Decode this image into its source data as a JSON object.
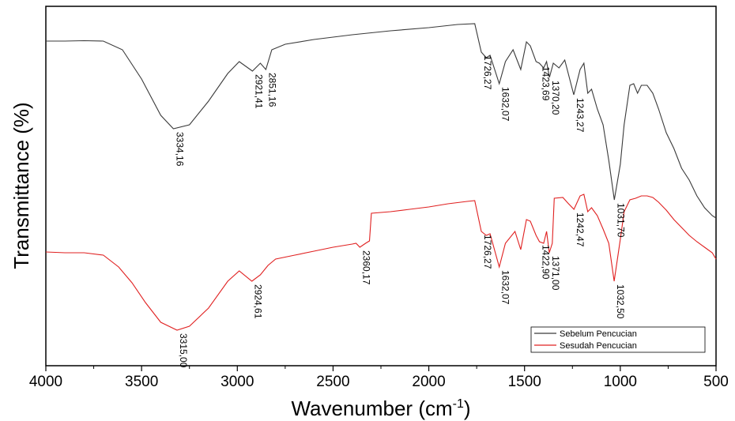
{
  "chart_data": {
    "type": "line",
    "xlabel": "Wavenumber (cm",
    "xlabel_sup": "-1",
    "xlabel_close": ")",
    "ylabel": "Transmittance (%)",
    "xlim": [
      4000,
      500
    ],
    "x_reversed": true,
    "y_ticks_shown": false,
    "legend_position": "bottom-right",
    "x_ticks": [
      "4000",
      "3500",
      "3000",
      "2500",
      "2000",
      "1500",
      "1000",
      "500"
    ],
    "series": [
      {
        "name": "Sebelum Pencucian",
        "color": "#3a3a3a",
        "points": [
          [
            4000,
            44
          ],
          [
            3900,
            44
          ],
          [
            3800,
            43.5
          ],
          [
            3700,
            44
          ],
          [
            3600,
            55
          ],
          [
            3500,
            92
          ],
          [
            3400,
            138
          ],
          [
            3334,
            155
          ],
          [
            3250,
            150
          ],
          [
            3150,
            120
          ],
          [
            3050,
            85
          ],
          [
            2990,
            70
          ],
          [
            2921,
            82
          ],
          [
            2880,
            72
          ],
          [
            2851,
            80
          ],
          [
            2820,
            55
          ],
          [
            2750,
            48
          ],
          [
            2600,
            42
          ],
          [
            2400,
            36
          ],
          [
            2200,
            31
          ],
          [
            2000,
            27
          ],
          [
            1850,
            23
          ],
          [
            1760,
            22
          ],
          [
            1726,
            58
          ],
          [
            1700,
            65
          ],
          [
            1680,
            62
          ],
          [
            1632,
            98
          ],
          [
            1600,
            70
          ],
          [
            1560,
            55
          ],
          [
            1520,
            80
          ],
          [
            1490,
            45
          ],
          [
            1470,
            50
          ],
          [
            1440,
            70
          ],
          [
            1423,
            72
          ],
          [
            1400,
            78
          ],
          [
            1385,
            70
          ],
          [
            1370,
            90
          ],
          [
            1350,
            72
          ],
          [
            1320,
            78
          ],
          [
            1290,
            68
          ],
          [
            1243,
            112
          ],
          [
            1210,
            80
          ],
          [
            1190,
            72
          ],
          [
            1170,
            110
          ],
          [
            1150,
            105
          ],
          [
            1120,
            130
          ],
          [
            1090,
            150
          ],
          [
            1060,
            195
          ],
          [
            1031,
            245
          ],
          [
            1000,
            200
          ],
          [
            980,
            150
          ],
          [
            950,
            100
          ],
          [
            930,
            98
          ],
          [
            910,
            110
          ],
          [
            890,
            100
          ],
          [
            860,
            100
          ],
          [
            830,
            110
          ],
          [
            800,
            130
          ],
          [
            760,
            160
          ],
          [
            720,
            180
          ],
          [
            680,
            205
          ],
          [
            640,
            220
          ],
          [
            600,
            240
          ],
          [
            560,
            255
          ],
          [
            520,
            265
          ],
          [
            500,
            268
          ]
        ]
      },
      {
        "name": "Sesudah Pencucian",
        "color": "#e02020",
        "points": [
          [
            4000,
            311
          ],
          [
            3900,
            312
          ],
          [
            3800,
            312
          ],
          [
            3700,
            315
          ],
          [
            3620,
            330
          ],
          [
            3550,
            350
          ],
          [
            3480,
            375
          ],
          [
            3400,
            400
          ],
          [
            3315,
            410
          ],
          [
            3250,
            405
          ],
          [
            3150,
            382
          ],
          [
            3050,
            348
          ],
          [
            2990,
            335
          ],
          [
            2924,
            348
          ],
          [
            2880,
            340
          ],
          [
            2840,
            328
          ],
          [
            2800,
            320
          ],
          [
            2700,
            315
          ],
          [
            2600,
            310
          ],
          [
            2500,
            305
          ],
          [
            2400,
            301
          ],
          [
            2380,
            300
          ],
          [
            2360,
            305
          ],
          [
            2330,
            300
          ],
          [
            2310,
            297
          ],
          [
            2300,
            262
          ],
          [
            2200,
            260
          ],
          [
            2100,
            257
          ],
          [
            2000,
            254
          ],
          [
            1900,
            250
          ],
          [
            1800,
            247
          ],
          [
            1760,
            246
          ],
          [
            1726,
            285
          ],
          [
            1700,
            290
          ],
          [
            1680,
            288
          ],
          [
            1632,
            330
          ],
          [
            1600,
            300
          ],
          [
            1550,
            285
          ],
          [
            1520,
            308
          ],
          [
            1490,
            270
          ],
          [
            1470,
            272
          ],
          [
            1440,
            290
          ],
          [
            1422,
            298
          ],
          [
            1400,
            300
          ],
          [
            1385,
            285
          ],
          [
            1371,
            312
          ],
          [
            1355,
            300
          ],
          [
            1345,
            243
          ],
          [
            1300,
            242
          ],
          [
            1270,
            250
          ],
          [
            1242,
            257
          ],
          [
            1210,
            240
          ],
          [
            1190,
            238
          ],
          [
            1170,
            260
          ],
          [
            1150,
            255
          ],
          [
            1120,
            265
          ],
          [
            1090,
            282
          ],
          [
            1060,
            300
          ],
          [
            1032,
            348
          ],
          [
            1000,
            295
          ],
          [
            980,
            260
          ],
          [
            950,
            245
          ],
          [
            920,
            243
          ],
          [
            890,
            240
          ],
          [
            860,
            240
          ],
          [
            830,
            242
          ],
          [
            800,
            248
          ],
          [
            760,
            258
          ],
          [
            720,
            270
          ],
          [
            680,
            280
          ],
          [
            640,
            290
          ],
          [
            600,
            298
          ],
          [
            560,
            305
          ],
          [
            520,
            312
          ],
          [
            500,
            320
          ]
        ]
      }
    ],
    "annotations": [
      {
        "text": "3334,16",
        "series": 0,
        "x": 3334
      },
      {
        "text": "2921,41",
        "series": 0,
        "x": 2921
      },
      {
        "text": "2851,16",
        "series": 0,
        "x": 2851
      },
      {
        "text": "1726,27",
        "series": 0,
        "x": 1726
      },
      {
        "text": "1632,07",
        "series": 0,
        "x": 1632
      },
      {
        "text": "1423,69",
        "series": 0,
        "x": 1423
      },
      {
        "text": "1370,20",
        "series": 0,
        "x": 1370
      },
      {
        "text": "1243,27",
        "series": 0,
        "x": 1243
      },
      {
        "text": "1031,70",
        "series": 0,
        "x": 1031
      },
      {
        "text": "3315,00",
        "series": 1,
        "x": 3315
      },
      {
        "text": "2924,61",
        "series": 1,
        "x": 2924
      },
      {
        "text": "2360,17",
        "series": 1,
        "x": 2360
      },
      {
        "text": "1726,27",
        "series": 1,
        "x": 1726
      },
      {
        "text": "1632,07",
        "series": 1,
        "x": 1632
      },
      {
        "text": "1422,90",
        "series": 1,
        "x": 1422
      },
      {
        "text": "1371,00",
        "series": 1,
        "x": 1371
      },
      {
        "text": "1242,47",
        "series": 1,
        "x": 1242
      },
      {
        "text": "1032,50",
        "series": 1,
        "x": 1032
      }
    ]
  }
}
